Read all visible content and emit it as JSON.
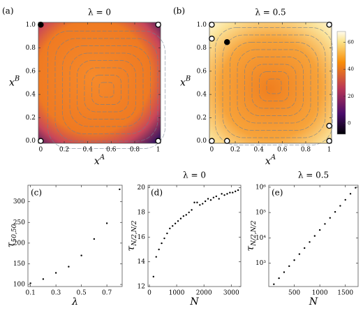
{
  "chart_data": [
    {
      "type": "streamplot",
      "label": "(a)",
      "title": "λ = 0",
      "xlabel": "x",
      "xlabel_sup": "A",
      "ylabel": "x",
      "ylabel_sup": "B",
      "xlim": [
        -0.02,
        1.02
      ],
      "ylim": [
        -0.02,
        1.02
      ],
      "xticks": [
        0,
        0.2,
        0.4,
        0.6,
        0.8,
        1
      ],
      "yticks": [
        {
          "value": 0,
          "label": "0.0"
        },
        0.2,
        0.4,
        0.6,
        0.8,
        {
          "value": 1,
          "label": "1.0"
        }
      ],
      "filled_points": {
        "x": [
          0
        ],
        "y": [
          1
        ]
      },
      "open_points": {
        "x": [
          1,
          0,
          1
        ],
        "y": [
          1,
          0,
          0
        ]
      }
    },
    {
      "type": "streamplot",
      "label": "(b)",
      "title": "λ = 0.5",
      "xlabel": "x",
      "xlabel_sup": "A",
      "ylabel": "x",
      "ylabel_sup": "B",
      "xlim": [
        -0.02,
        1.02
      ],
      "ylim": [
        -0.02,
        1.02
      ],
      "xticks": [
        0,
        0.2,
        0.4,
        0.6,
        0.8,
        1
      ],
      "yticks": [
        {
          "value": 0,
          "label": "0.0"
        },
        0.2,
        0.4,
        0.6,
        0.8,
        {
          "value": 1,
          "label": "1.0"
        }
      ],
      "filled_points": {
        "x": [
          0.13
        ],
        "y": [
          0.85
        ]
      },
      "open_points": {
        "x": [
          0,
          0,
          0,
          0.13,
          1,
          1,
          1
        ],
        "y": [
          1,
          0.88,
          0,
          0,
          0,
          0.13,
          1
        ]
      },
      "colorbar": {
        "lim": [
          -8,
          68
        ],
        "ticks": [
          0,
          20,
          40,
          60
        ]
      }
    },
    {
      "type": "scatter",
      "label": "(c)",
      "xlabel": "λ",
      "ylabel": "τ",
      "ylabel_sub": "50,50",
      "xlim": [
        0.08,
        0.82
      ],
      "ylim": [
        95,
        340
      ],
      "xticks": [
        0.1,
        0.3,
        0.5,
        0.7
      ],
      "yticks": [
        100,
        150,
        200,
        250,
        300
      ],
      "x": [
        0.1,
        0.2,
        0.3,
        0.4,
        0.5,
        0.6,
        0.7,
        0.8
      ],
      "values": [
        103,
        113,
        128,
        143,
        170,
        210,
        248,
        330
      ]
    },
    {
      "type": "scatter",
      "label": "(d)",
      "title": "λ = 0",
      "xlabel": "N",
      "ylabel": "τ",
      "ylabel_sub": "N/2,N/2",
      "xlim": [
        -50,
        3350
      ],
      "ylim": [
        12,
        20.2
      ],
      "xticks": [
        0,
        1000,
        2000,
        3000
      ],
      "yticks": [
        12,
        14,
        16,
        18,
        20
      ],
      "x": [
        150,
        250,
        350,
        450,
        550,
        650,
        750,
        850,
        950,
        1050,
        1150,
        1250,
        1350,
        1450,
        1550,
        1650,
        1750,
        1850,
        1950,
        2050,
        2150,
        2250,
        2350,
        2450,
        2550,
        2650,
        2750,
        2850,
        2950,
        3050,
        3150,
        3250
      ],
      "values": [
        12.8,
        14.4,
        15.0,
        15.5,
        15.9,
        16.3,
        16.7,
        16.9,
        17.1,
        17.3,
        17.5,
        17.7,
        17.8,
        18.0,
        18.2,
        18.8,
        18.8,
        18.6,
        18.7,
        18.9,
        19.1,
        19.0,
        19.2,
        19.3,
        19.1,
        19.5,
        19.4,
        19.5,
        19.6,
        19.6,
        19.7,
        19.8
      ]
    },
    {
      "type": "scatter",
      "label": "(e)",
      "title": "λ = 0.5",
      "xlabel": "N",
      "ylabel": "τ",
      "ylabel_sub": "N/2,N/2",
      "ylog": true,
      "xlim": [
        0,
        1750
      ],
      "ylim": [
        120,
        1200000
      ],
      "xticks": [
        500,
        1000,
        1500
      ],
      "yticks": [
        {
          "value": 1000,
          "label": "10³"
        },
        {
          "value": 10000,
          "label": "10⁴"
        },
        {
          "value": 100000,
          "label": "10⁵"
        },
        {
          "value": 1000000,
          "label": "10⁶"
        }
      ],
      "x": [
        100,
        200,
        300,
        400,
        500,
        600,
        700,
        800,
        900,
        1000,
        1100,
        1200,
        1300,
        1400,
        1500,
        1600,
        1700
      ],
      "values": [
        148,
        256,
        443,
        766,
        1320,
        2290,
        3960,
        6860,
        11900,
        20500,
        35500,
        61400,
        106000,
        184000,
        318000,
        550000,
        951000
      ]
    }
  ]
}
